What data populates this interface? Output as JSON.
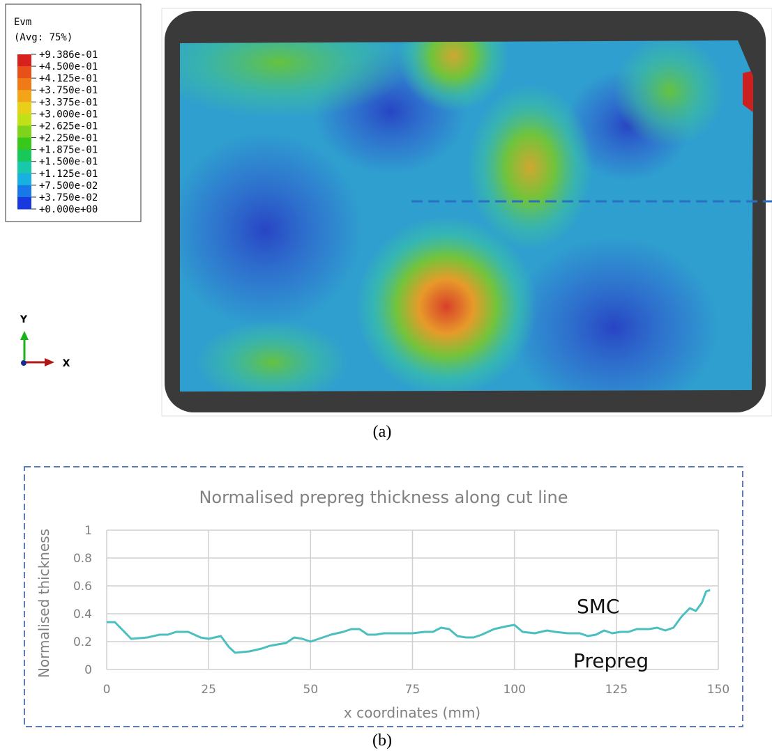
{
  "panel_a": {
    "legend": {
      "title": "Evm",
      "subtitle": "(Avg: 75%)",
      "labels": [
        "+9.386e-01",
        "+4.500e-01",
        "+4.125e-01",
        "+3.750e-01",
        "+3.375e-01",
        "+3.000e-01",
        "+2.625e-01",
        "+2.250e-01",
        "+1.875e-01",
        "+1.500e-01",
        "+1.125e-01",
        "+7.500e-02",
        "+3.750e-02",
        "+0.000e+00"
      ]
    },
    "axes": {
      "y": "Y",
      "x": "X"
    }
  },
  "captions": [
    "(a)",
    "(b)"
  ],
  "chart_data": {
    "type": "line",
    "title": "Normalised prepreg thickness along cut line",
    "x_label": "x coordinates (mm)",
    "y_label": "Normalised thickness",
    "annotations": [
      "SMC",
      "Prepreg"
    ],
    "color": "#4bbfbf",
    "x": [
      0,
      2,
      4,
      6,
      10,
      13,
      15,
      17,
      20,
      23,
      25,
      28,
      30,
      31.5,
      35,
      38,
      40,
      42,
      44,
      46,
      48,
      50,
      52,
      55,
      58,
      60,
      62,
      64,
      66,
      68,
      72,
      75,
      78,
      80,
      82,
      84,
      86,
      88,
      90,
      92,
      95,
      98,
      100,
      102,
      105,
      108,
      110,
      113,
      116,
      118,
      120,
      122,
      124,
      126,
      128,
      130,
      133,
      135,
      137,
      139,
      141,
      143,
      144.5,
      146,
      147,
      148
    ],
    "values": [
      0.34,
      0.34,
      0.28,
      0.22,
      0.23,
      0.25,
      0.25,
      0.27,
      0.27,
      0.23,
      0.22,
      0.24,
      0.16,
      0.12,
      0.13,
      0.15,
      0.17,
      0.18,
      0.19,
      0.23,
      0.22,
      0.2,
      0.22,
      0.25,
      0.27,
      0.29,
      0.29,
      0.25,
      0.25,
      0.26,
      0.26,
      0.26,
      0.27,
      0.27,
      0.3,
      0.29,
      0.24,
      0.23,
      0.23,
      0.25,
      0.29,
      0.31,
      0.32,
      0.27,
      0.26,
      0.28,
      0.27,
      0.26,
      0.26,
      0.24,
      0.25,
      0.28,
      0.26,
      0.27,
      0.27,
      0.29,
      0.29,
      0.3,
      0.28,
      0.3,
      0.38,
      0.44,
      0.42,
      0.48,
      0.56,
      0.57
    ],
    "xlim": [
      0,
      150
    ],
    "xticks": [
      0,
      25,
      50,
      75,
      100,
      125,
      150
    ],
    "ylim": [
      0,
      1
    ],
    "yticks": [
      0,
      0.2,
      0.4,
      0.6,
      0.8,
      1
    ],
    "grid": true
  }
}
